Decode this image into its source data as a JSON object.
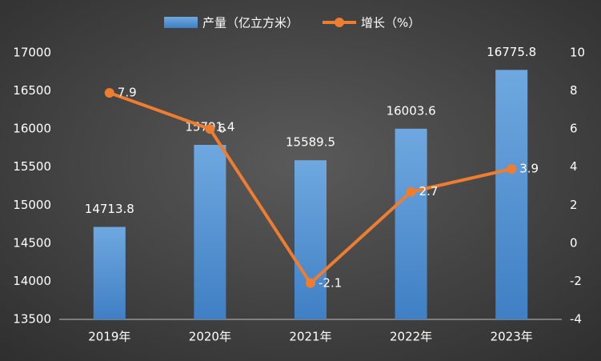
{
  "chart_data": {
    "type": "bar",
    "categories": [
      "2019年",
      "2020年",
      "2021年",
      "2022年",
      "2023年"
    ],
    "series": [
      {
        "name": "产量（亿立方米）",
        "type": "bar",
        "color": "#5b9bd5",
        "values": [
          14713.8,
          15791.4,
          15589.5,
          16003.6,
          16775.8
        ]
      },
      {
        "name": "增长（%）",
        "type": "line",
        "axis": "y2",
        "color": "#ed7d31",
        "values": [
          7.9,
          6,
          -2.1,
          2.7,
          3.9
        ]
      }
    ],
    "ylim": [
      13500,
      17000
    ],
    "yticks": [
      13500,
      14000,
      14500,
      15000,
      15500,
      16000,
      16500,
      17000
    ],
    "y2lim": [
      -4,
      10
    ],
    "y2ticks": [
      -4,
      -2,
      0,
      2,
      4,
      6,
      8,
      10
    ],
    "legend": "top"
  }
}
